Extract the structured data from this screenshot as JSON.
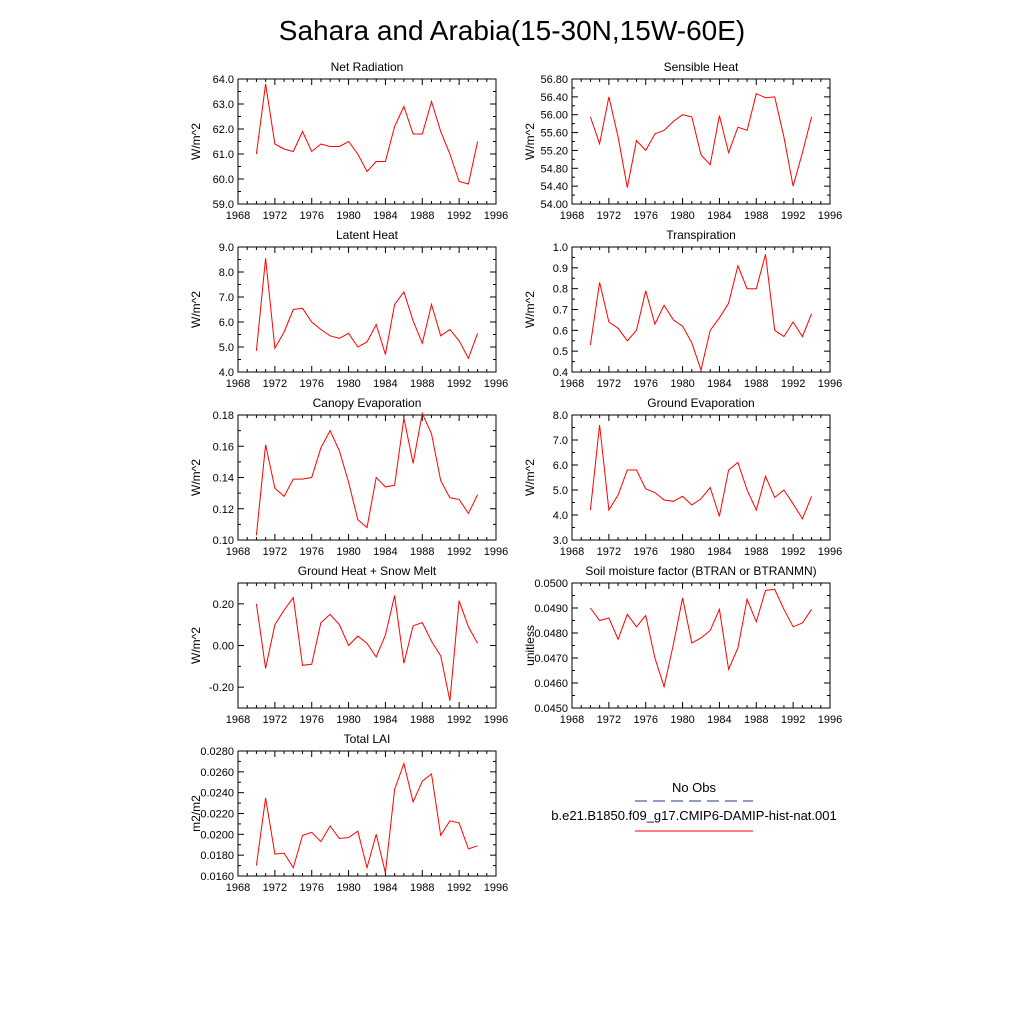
{
  "page_title": "Sahara and Arabia(15-30N,15W-60E)",
  "legend": {
    "obs_label": "No Obs",
    "obs_color": "#4b5fa8",
    "model_label": "b.e21.B1850.f09_g17.CMIP6-DAMIP-hist-nat.001",
    "model_color": "#ff0000"
  },
  "chart_data": [
    {
      "type": "line",
      "title": "Net Radiation",
      "ylabel": "W/m^2",
      "xlim": [
        1968,
        1996
      ],
      "ylim": [
        59.0,
        64.0
      ],
      "yticks": [
        "59.0",
        "60.0",
        "61.0",
        "62.0",
        "63.0",
        "64.0"
      ],
      "xticks": [
        "1968",
        "1972",
        "1976",
        "1980",
        "1984",
        "1988",
        "1992",
        "1996"
      ],
      "x": [
        1970,
        1971,
        1972,
        1973,
        1974,
        1975,
        1976,
        1977,
        1978,
        1979,
        1980,
        1981,
        1982,
        1983,
        1984,
        1985,
        1986,
        1987,
        1988,
        1989,
        1990,
        1991,
        1992,
        1993,
        1994
      ],
      "series": [
        {
          "color": "#ff0000",
          "values": [
            61.0,
            63.8,
            61.4,
            61.2,
            61.1,
            61.9,
            61.1,
            61.4,
            61.3,
            61.3,
            61.5,
            61.0,
            60.3,
            60.7,
            60.7,
            62.1,
            62.9,
            61.8,
            61.8,
            63.1,
            61.9,
            61.0,
            59.9,
            59.8,
            61.5
          ]
        }
      ]
    },
    {
      "type": "line",
      "title": "Sensible Heat",
      "ylabel": "W/m^2",
      "xlim": [
        1968,
        1996
      ],
      "ylim": [
        54.0,
        56.8
      ],
      "yticks": [
        "54.00",
        "54.40",
        "54.80",
        "55.20",
        "55.60",
        "56.00",
        "56.40",
        "56.80"
      ],
      "xticks": [
        "1968",
        "1972",
        "1976",
        "1980",
        "1984",
        "1988",
        "1992",
        "1996"
      ],
      "x": [
        1970,
        1971,
        1972,
        1973,
        1974,
        1975,
        1976,
        1977,
        1978,
        1979,
        1980,
        1981,
        1982,
        1983,
        1984,
        1985,
        1986,
        1987,
        1988,
        1989,
        1990,
        1991,
        1992,
        1993,
        1994
      ],
      "series": [
        {
          "color": "#ff0000",
          "values": [
            55.95,
            55.35,
            56.4,
            55.5,
            54.37,
            55.42,
            55.2,
            55.57,
            55.65,
            55.85,
            56.0,
            55.95,
            55.1,
            54.88,
            55.98,
            55.15,
            55.72,
            55.65,
            56.47,
            56.38,
            56.4,
            55.5,
            54.4,
            55.15,
            55.95
          ]
        }
      ]
    },
    {
      "type": "line",
      "title": "Latent Heat",
      "ylabel": "W/m^2",
      "xlim": [
        1968,
        1996
      ],
      "ylim": [
        4.0,
        9.0
      ],
      "yticks": [
        "4.0",
        "5.0",
        "6.0",
        "7.0",
        "8.0",
        "9.0"
      ],
      "xticks": [
        "1968",
        "1972",
        "1976",
        "1980",
        "1984",
        "1988",
        "1992",
        "1996"
      ],
      "x": [
        1970,
        1971,
        1972,
        1973,
        1974,
        1975,
        1976,
        1977,
        1978,
        1979,
        1980,
        1981,
        1982,
        1983,
        1984,
        1985,
        1986,
        1987,
        1988,
        1989,
        1990,
        1991,
        1992,
        1993,
        1994
      ],
      "series": [
        {
          "color": "#ff0000",
          "values": [
            4.85,
            8.55,
            4.95,
            5.6,
            6.5,
            6.55,
            6.0,
            5.7,
            5.45,
            5.35,
            5.55,
            5.0,
            5.2,
            5.9,
            4.7,
            6.7,
            7.2,
            6.05,
            5.15,
            6.7,
            5.45,
            5.7,
            5.25,
            4.55,
            5.55
          ]
        }
      ]
    },
    {
      "type": "line",
      "title": "Transpiration",
      "ylabel": "W/m^2",
      "xlim": [
        1968,
        1996
      ],
      "ylim": [
        0.4,
        1.0
      ],
      "yticks": [
        "0.4",
        "0.5",
        "0.6",
        "0.7",
        "0.8",
        "0.9",
        "1.0"
      ],
      "xticks": [
        "1968",
        "1972",
        "1976",
        "1980",
        "1984",
        "1988",
        "1992",
        "1996"
      ],
      "x": [
        1970,
        1971,
        1972,
        1973,
        1974,
        1975,
        1976,
        1977,
        1978,
        1979,
        1980,
        1981,
        1982,
        1983,
        1984,
        1985,
        1986,
        1987,
        1988,
        1989,
        1990,
        1991,
        1992,
        1993,
        1994
      ],
      "series": [
        {
          "color": "#ff0000",
          "values": [
            0.53,
            0.83,
            0.64,
            0.61,
            0.55,
            0.6,
            0.79,
            0.63,
            0.72,
            0.65,
            0.62,
            0.54,
            0.41,
            0.6,
            0.66,
            0.73,
            0.91,
            0.8,
            0.8,
            0.965,
            0.6,
            0.57,
            0.64,
            0.57,
            0.68
          ]
        }
      ]
    },
    {
      "type": "line",
      "title": "Canopy Evaporation",
      "ylabel": "W/m^2",
      "xlim": [
        1968,
        1996
      ],
      "ylim": [
        0.1,
        0.18
      ],
      "yticks": [
        "0.10",
        "0.12",
        "0.14",
        "0.16",
        "0.18"
      ],
      "xticks": [
        "1968",
        "1972",
        "1976",
        "1980",
        "1984",
        "1988",
        "1992",
        "1996"
      ],
      "x": [
        1970,
        1971,
        1972,
        1973,
        1974,
        1975,
        1976,
        1977,
        1978,
        1979,
        1980,
        1981,
        1982,
        1983,
        1984,
        1985,
        1986,
        1987,
        1988,
        1989,
        1990,
        1991,
        1992,
        1993,
        1994
      ],
      "series": [
        {
          "color": "#ff0000",
          "values": [
            0.103,
            0.161,
            0.133,
            0.128,
            0.139,
            0.139,
            0.14,
            0.159,
            0.17,
            0.157,
            0.137,
            0.113,
            0.108,
            0.14,
            0.134,
            0.135,
            0.178,
            0.149,
            0.181,
            0.168,
            0.138,
            0.127,
            0.126,
            0.117,
            0.129
          ]
        }
      ]
    },
    {
      "type": "line",
      "title": "Ground Evaporation",
      "ylabel": "W/m^2",
      "xlim": [
        1968,
        1996
      ],
      "ylim": [
        3.0,
        8.0
      ],
      "yticks": [
        "3.0",
        "4.0",
        "5.0",
        "6.0",
        "7.0",
        "8.0"
      ],
      "xticks": [
        "1968",
        "1972",
        "1976",
        "1980",
        "1984",
        "1988",
        "1992",
        "1996"
      ],
      "x": [
        1970,
        1971,
        1972,
        1973,
        1974,
        1975,
        1976,
        1977,
        1978,
        1979,
        1980,
        1981,
        1982,
        1983,
        1984,
        1985,
        1986,
        1987,
        1988,
        1989,
        1990,
        1991,
        1992,
        1993,
        1994
      ],
      "series": [
        {
          "color": "#ff0000",
          "values": [
            4.2,
            7.6,
            4.2,
            4.8,
            5.8,
            5.8,
            5.05,
            4.9,
            4.6,
            4.55,
            4.75,
            4.4,
            4.65,
            5.1,
            3.95,
            5.8,
            6.1,
            5.0,
            4.2,
            5.55,
            4.7,
            5.0,
            4.45,
            3.85,
            4.75
          ]
        }
      ]
    },
    {
      "type": "line",
      "title": "Ground Heat + Snow Melt",
      "ylabel": "W/m^2",
      "xlim": [
        1968,
        1996
      ],
      "ylim": [
        -0.3,
        0.3
      ],
      "yticks": [
        "-0.20",
        "0.00",
        "0.20"
      ],
      "yticks_values": [
        -0.2,
        0.0,
        0.2
      ],
      "xticks": [
        "1968",
        "1972",
        "1976",
        "1980",
        "1984",
        "1988",
        "1992",
        "1996"
      ],
      "x": [
        1970,
        1971,
        1972,
        1973,
        1974,
        1975,
        1976,
        1977,
        1978,
        1979,
        1980,
        1981,
        1982,
        1983,
        1984,
        1985,
        1986,
        1987,
        1988,
        1989,
        1990,
        1991,
        1992,
        1993,
        1994
      ],
      "series": [
        {
          "color": "#ff0000",
          "values": [
            0.2,
            -0.11,
            0.1,
            0.17,
            0.23,
            -0.095,
            -0.09,
            0.11,
            0.15,
            0.1,
            0.0,
            0.045,
            0.01,
            -0.055,
            0.05,
            0.24,
            -0.085,
            0.095,
            0.11,
            0.02,
            -0.05,
            -0.265,
            0.215,
            0.09,
            0.01
          ]
        }
      ]
    },
    {
      "type": "line",
      "title": "Soil moisture factor (BTRAN or BTRANMN)",
      "ylabel": "unitless",
      "xlim": [
        1968,
        1996
      ],
      "ylim": [
        0.045,
        0.05
      ],
      "yticks": [
        "0.0450",
        "0.0460",
        "0.0470",
        "0.0480",
        "0.0490",
        "0.0500"
      ],
      "xticks": [
        "1968",
        "1972",
        "1976",
        "1980",
        "1984",
        "1988",
        "1992",
        "1996"
      ],
      "x": [
        1970,
        1971,
        1972,
        1973,
        1974,
        1975,
        1976,
        1977,
        1978,
        1979,
        1980,
        1981,
        1982,
        1983,
        1984,
        1985,
        1986,
        1987,
        1988,
        1989,
        1990,
        1991,
        1992,
        1993,
        1994
      ],
      "series": [
        {
          "color": "#ff0000",
          "values": [
            0.049,
            0.0485,
            0.0486,
            0.04775,
            0.04875,
            0.04825,
            0.0487,
            0.047,
            0.04585,
            0.04755,
            0.0494,
            0.0476,
            0.0478,
            0.0481,
            0.04895,
            0.04655,
            0.0474,
            0.04935,
            0.04845,
            0.0497,
            0.04975,
            0.04895,
            0.04825,
            0.0484,
            0.04895
          ]
        }
      ]
    },
    {
      "type": "line",
      "title": "Total LAI",
      "ylabel": "m2/m2",
      "xlim": [
        1968,
        1996
      ],
      "ylim": [
        0.016,
        0.028
      ],
      "yticks": [
        "0.0160",
        "0.0180",
        "0.0200",
        "0.0220",
        "0.0240",
        "0.0260",
        "0.0280"
      ],
      "xticks": [
        "1968",
        "1972",
        "1976",
        "1980",
        "1984",
        "1988",
        "1992",
        "1996"
      ],
      "x": [
        1970,
        1971,
        1972,
        1973,
        1974,
        1975,
        1976,
        1977,
        1978,
        1979,
        1980,
        1981,
        1982,
        1983,
        1984,
        1985,
        1986,
        1987,
        1988,
        1989,
        1990,
        1991,
        1992,
        1993,
        1994
      ],
      "series": [
        {
          "color": "#ff0000",
          "values": [
            0.017,
            0.0235,
            0.0181,
            0.0182,
            0.0168,
            0.0199,
            0.0202,
            0.0193,
            0.0208,
            0.0196,
            0.0197,
            0.0203,
            0.0168,
            0.02,
            0.0163,
            0.0243,
            0.0268,
            0.0231,
            0.0251,
            0.0258,
            0.0199,
            0.0213,
            0.0211,
            0.0186,
            0.0189
          ]
        }
      ]
    }
  ]
}
